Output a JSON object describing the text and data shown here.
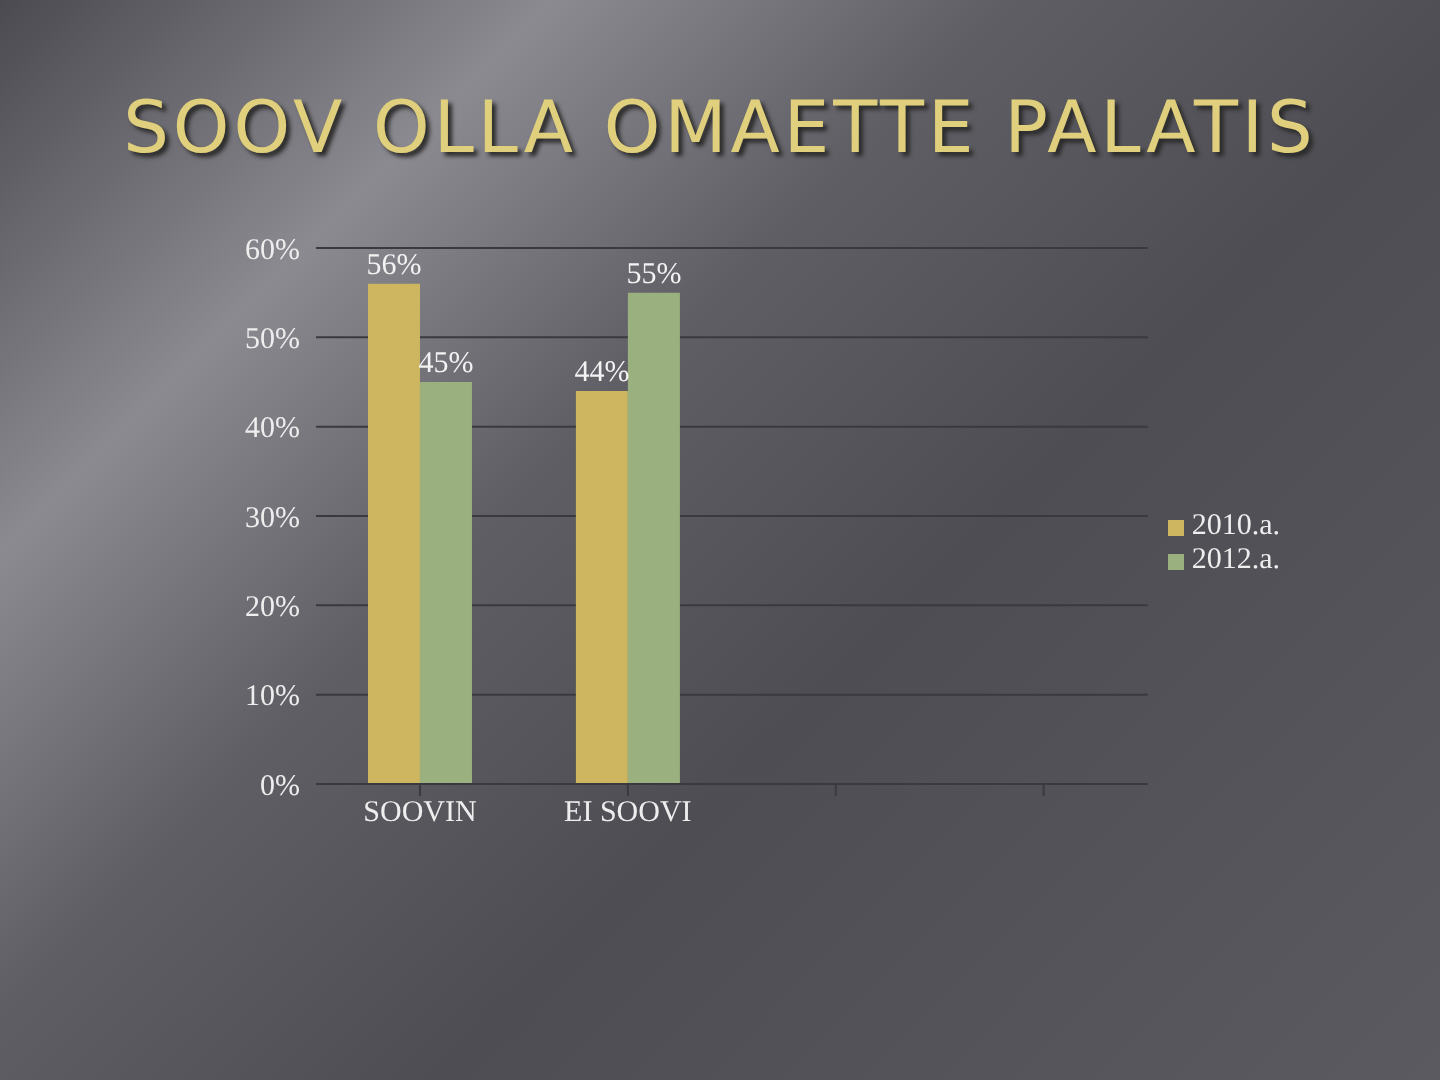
{
  "chart_data": {
    "type": "bar",
    "title": "SOOV OLLA OMAETTE PALATIS",
    "categories": [
      "SOOVIN",
      "EI SOOVI",
      null,
      null
    ],
    "series": [
      {
        "name": "2010.a.",
        "color": "#cdb65f",
        "values": [
          56,
          44,
          null,
          null
        ],
        "value_labels": [
          "56%",
          "44%",
          null,
          null
        ]
      },
      {
        "name": "2012.a.",
        "color": "#9bb07f",
        "values": [
          45,
          55,
          null,
          null
        ],
        "value_labels": [
          "45%",
          "55%",
          null,
          null
        ]
      }
    ],
    "ylim": [
      0,
      60
    ],
    "yticks": [
      {
        "value": 0,
        "label": "0%"
      },
      {
        "value": 10,
        "label": "10%"
      },
      {
        "value": 20,
        "label": "20%"
      },
      {
        "value": 30,
        "label": "30%"
      },
      {
        "value": 40,
        "label": "40%"
      },
      {
        "value": 50,
        "label": "50%"
      },
      {
        "value": 60,
        "label": "60%"
      }
    ],
    "grid": "y",
    "legend": "right"
  }
}
